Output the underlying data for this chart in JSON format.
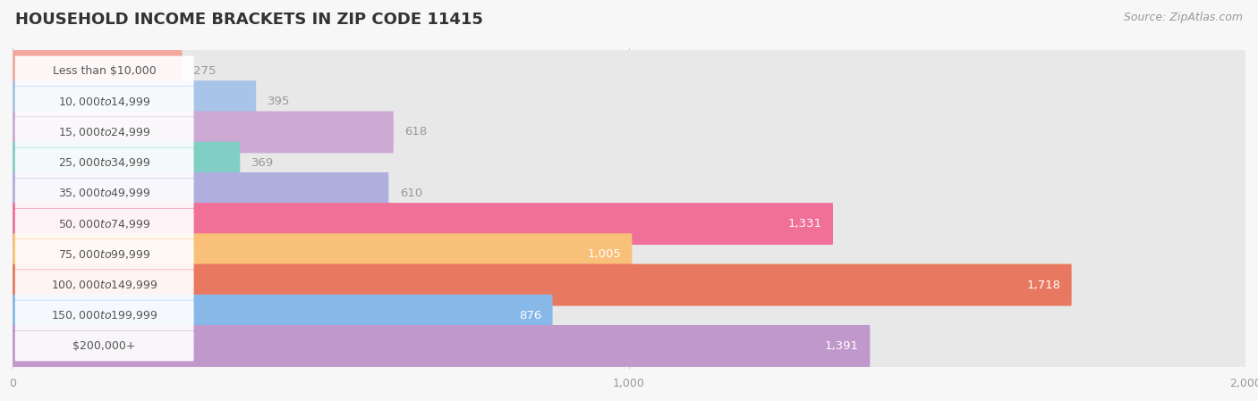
{
  "title": "HOUSEHOLD INCOME BRACKETS IN ZIP CODE 11415",
  "source": "Source: ZipAtlas.com",
  "categories": [
    "Less than $10,000",
    "$10,000 to $14,999",
    "$15,000 to $24,999",
    "$25,000 to $34,999",
    "$35,000 to $49,999",
    "$50,000 to $74,999",
    "$75,000 to $99,999",
    "$100,000 to $149,999",
    "$150,000 to $199,999",
    "$200,000+"
  ],
  "values": [
    275,
    395,
    618,
    369,
    610,
    1331,
    1005,
    1718,
    876,
    1391
  ],
  "colors": [
    "#f2a8a0",
    "#a8c4e8",
    "#ccaad4",
    "#80cec4",
    "#b0aedd",
    "#f07099",
    "#f8c078",
    "#e87860",
    "#88b8e8",
    "#c098cc"
  ],
  "track_color": "#e8e8e8",
  "pill_color": "#ffffff",
  "pill_text_color": "#555555",
  "xlim": [
    0,
    2000
  ],
  "xticks": [
    0,
    1000,
    2000
  ],
  "bar_height": 0.7,
  "background_color": "#f7f7f7",
  "label_color_outside": "#999999",
  "label_color_inside": "#ffffff",
  "title_fontsize": 13,
  "label_fontsize": 9.5,
  "cat_fontsize": 9,
  "source_fontsize": 9,
  "tick_fontsize": 9,
  "value_threshold": 700
}
